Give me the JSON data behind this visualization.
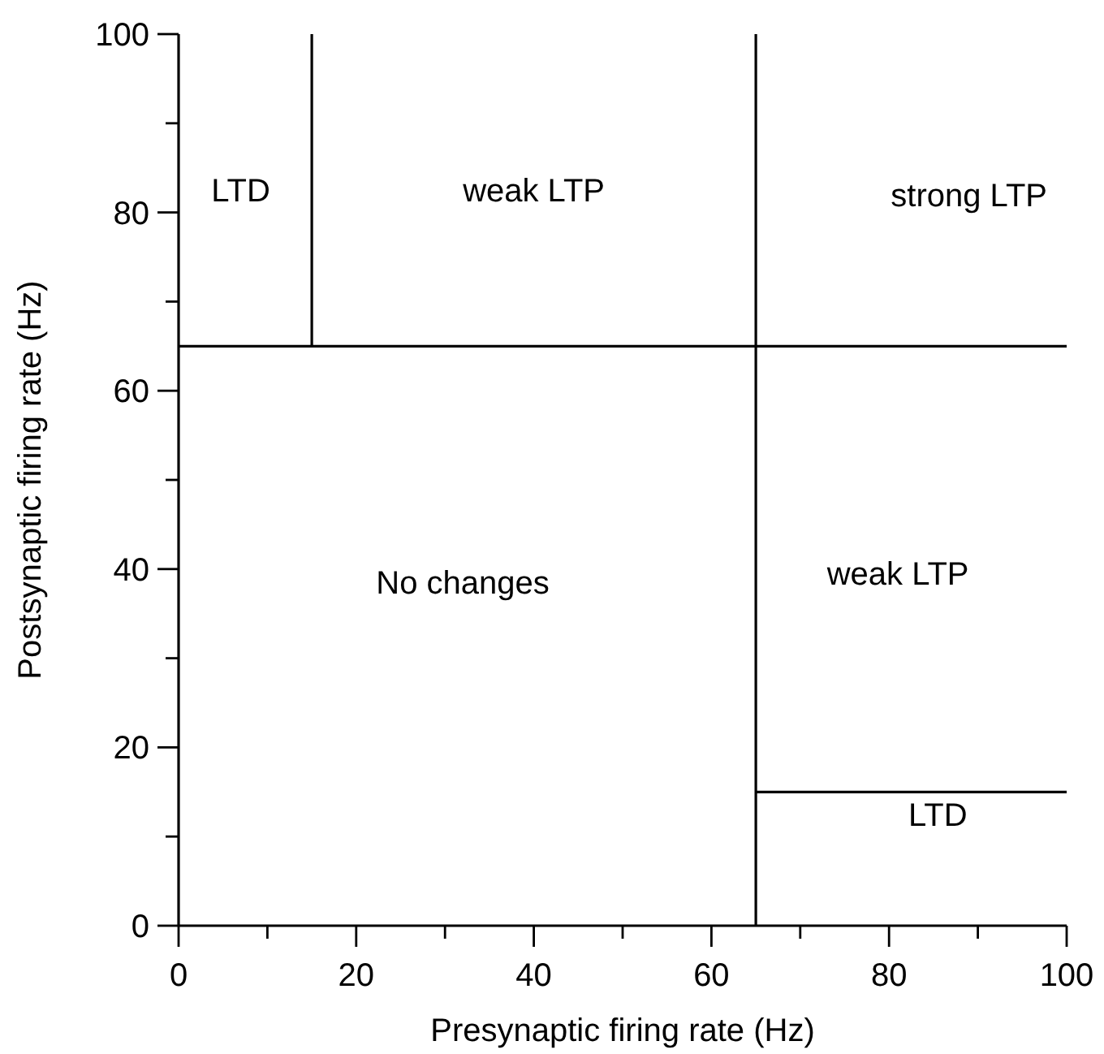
{
  "chart_data": {
    "type": "line",
    "xlabel": "Presynaptic firing rate (Hz)",
    "ylabel": "Postsynaptic firing rate (Hz)",
    "xlim": [
      0,
      100
    ],
    "ylim": [
      0,
      100
    ],
    "xticks": [
      0,
      {
        "value": 10,
        "label": null
      },
      20,
      {
        "value": 30,
        "label": null
      },
      40,
      {
        "value": 50,
        "label": null
      },
      60,
      {
        "value": 70,
        "label": null
      },
      80,
      {
        "value": 90,
        "label": null
      },
      100
    ],
    "yticks": [
      0,
      {
        "value": 10,
        "label": null
      },
      20,
      {
        "value": 30,
        "label": null
      },
      40,
      {
        "value": 50,
        "label": null
      },
      60,
      {
        "value": 70,
        "label": null
      },
      80,
      {
        "value": 90,
        "label": null
      },
      100
    ],
    "series": [
      {
        "color": "#000000",
        "x": [
          15,
          15
        ],
        "values": [
          65,
          100
        ]
      },
      {
        "color": "#000000",
        "x": [
          0,
          100
        ],
        "values": [
          65,
          65
        ]
      },
      {
        "color": "#000000",
        "x": [
          65,
          65
        ],
        "values": [
          0,
          100
        ]
      },
      {
        "color": "#000000",
        "x": [
          65,
          100
        ],
        "values": [
          15,
          15
        ]
      }
    ],
    "annotations": [
      "LTD",
      "weak LTP",
      "strong LTP",
      "No changes",
      "weak LTP",
      "LTD"
    ],
    "grid": false
  }
}
